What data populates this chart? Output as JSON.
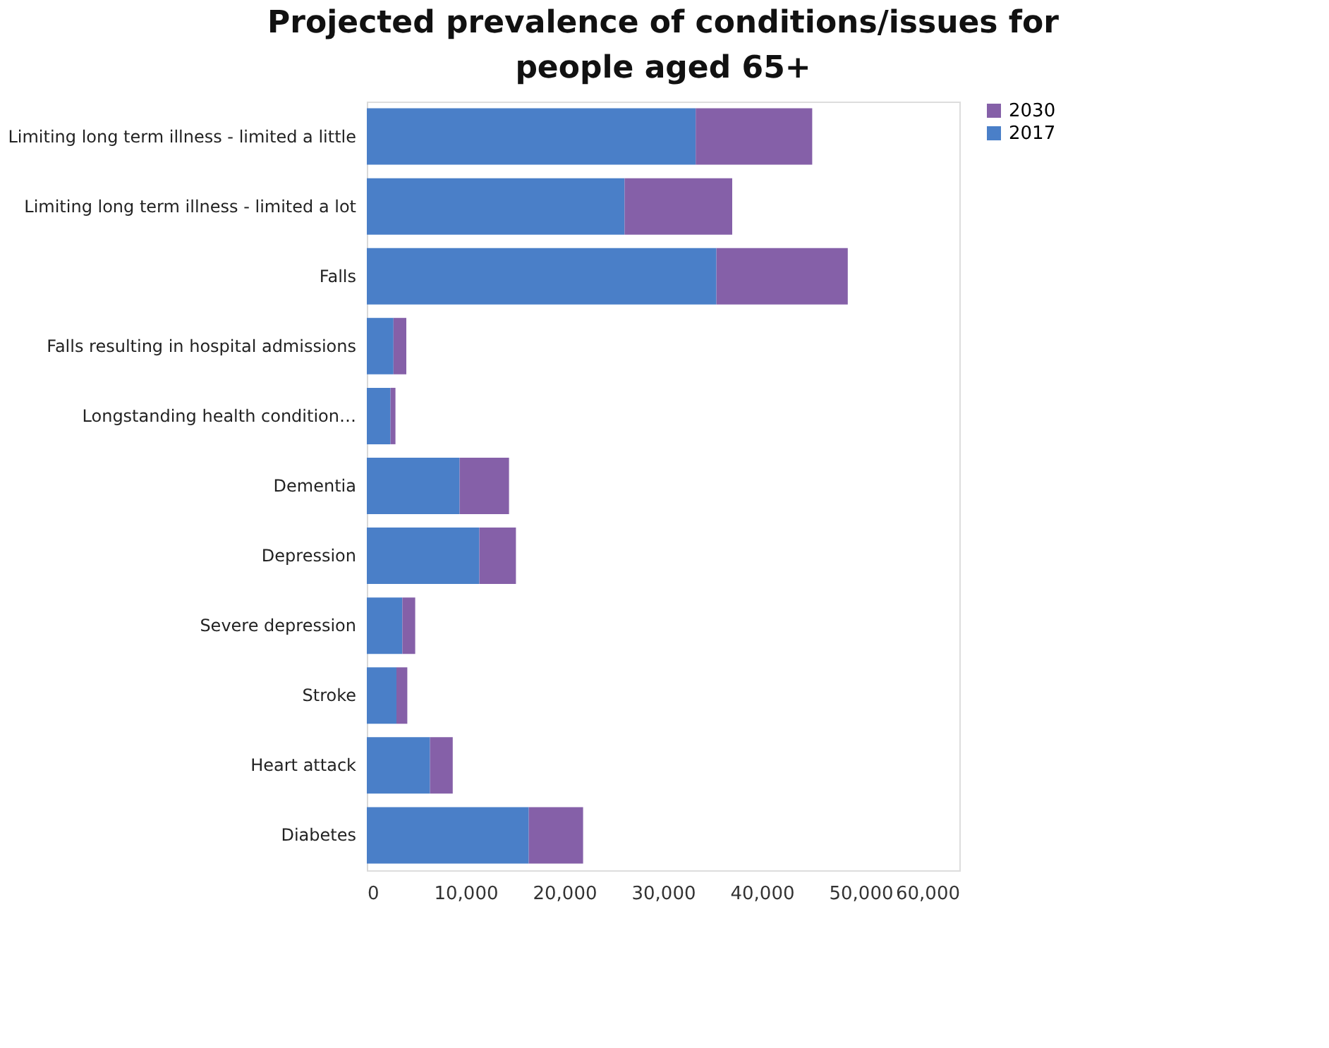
{
  "chart_data": {
    "type": "bar",
    "orientation": "horizontal",
    "stacked": true,
    "title": "Projected prevalence of conditions/issues for people aged 65+",
    "categories": [
      "Limiting long term illness - limited a little",
      "Limiting long term illness - limited a lot",
      "Falls",
      "Falls resulting in hospital admissions",
      "Longstanding health condition…",
      "Dementia",
      "Depression",
      "Severe depression",
      "Stroke",
      "Heart attack",
      "Diabetes"
    ],
    "series": [
      {
        "name": "2017",
        "color": "#4a7fc8",
        "values": [
          33300,
          26100,
          35400,
          2700,
          2400,
          9400,
          11400,
          3600,
          3000,
          6400,
          16400
        ]
      },
      {
        "name": "2030",
        "color": "#8560a8",
        "values": [
          11800,
          10900,
          13300,
          1300,
          500,
          5000,
          3700,
          1300,
          1100,
          2300,
          5500
        ]
      }
    ],
    "xlim": [
      0,
      60000
    ],
    "xticks": [
      {
        "value": 0,
        "label": "0"
      },
      {
        "value": 10000,
        "label": "10,000"
      },
      {
        "value": 20000,
        "label": "20,000"
      },
      {
        "value": 30000,
        "label": "30,000"
      },
      {
        "value": 40000,
        "label": "40,000"
      },
      {
        "value": 50000,
        "label": "50,000"
      },
      {
        "value": 60000,
        "label": "60,000"
      }
    ],
    "grid": false,
    "legend": "right"
  }
}
